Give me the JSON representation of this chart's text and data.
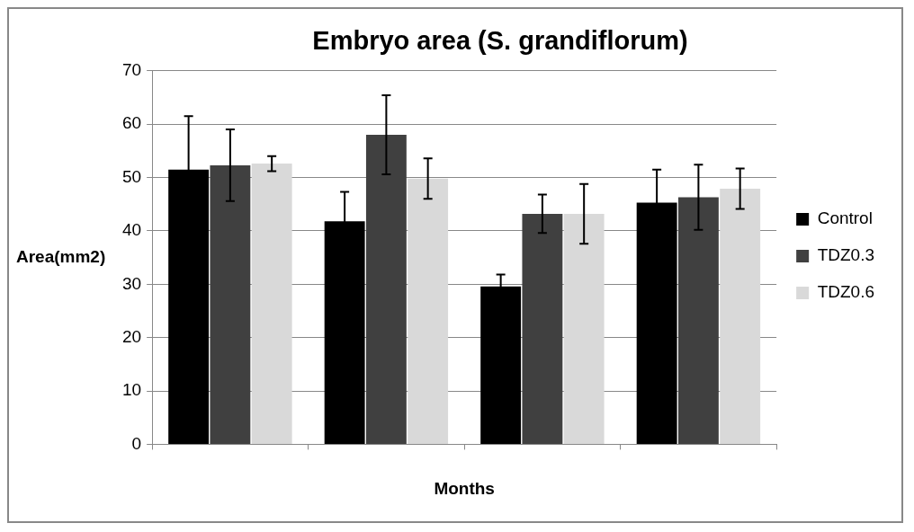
{
  "chart_data": {
    "type": "bar",
    "title": "Embryo area (S. grandiflorum)",
    "xlabel": "Months",
    "ylabel": "Area(mm2)",
    "categories": [
      null,
      null,
      null,
      null
    ],
    "series": [
      {
        "name": "Control",
        "color": "#000000",
        "values": [
          51.5,
          41.8,
          29.6,
          45.3
        ],
        "errors": [
          10,
          5.5,
          2.2,
          6.2
        ]
      },
      {
        "name": "TDZ0.3",
        "color": "#404040",
        "values": [
          52.3,
          58,
          43.2,
          46.3
        ],
        "errors": [
          6.7,
          7.4,
          3.6,
          6.1
        ]
      },
      {
        "name": "TDZ0.6",
        "color": "#d9d9d9",
        "values": [
          52.6,
          49.8,
          43.2,
          47.9
        ],
        "errors": [
          1.4,
          3.8,
          5.6,
          3.8
        ]
      }
    ],
    "ylim": [
      0,
      70
    ],
    "yticks": [
      0,
      10,
      20,
      30,
      40,
      50,
      60,
      70
    ],
    "grid": "y",
    "legend": "right"
  }
}
